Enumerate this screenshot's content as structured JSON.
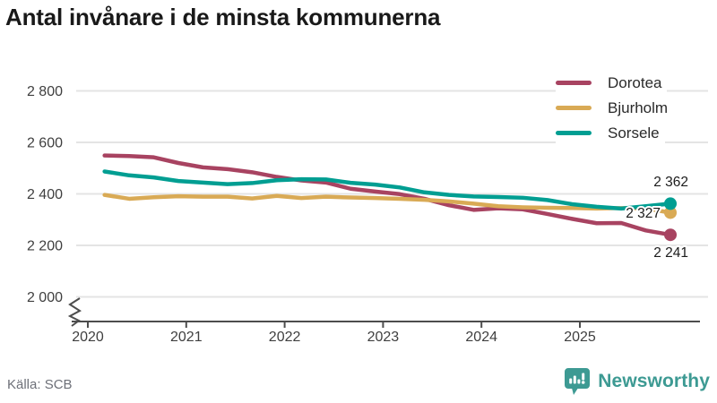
{
  "header": {
    "title": "Antal invånare i de minsta kommunerna"
  },
  "footer": {
    "source": "Källa: SCB",
    "brand": "Newsworthy"
  },
  "chart_data": {
    "type": "line",
    "title": "Antal invånare i de minsta kommunerna",
    "xlabel": "",
    "ylabel": "",
    "grid": "horizontal",
    "legend_position": "top-right",
    "axis_break_at_bottom": true,
    "ylim": [
      1960,
      2860
    ],
    "xlim": [
      2019.88,
      2026.3
    ],
    "x": [
      2020.17,
      2020.42,
      2020.67,
      2020.92,
      2021.17,
      2021.42,
      2021.67,
      2021.92,
      2022.17,
      2022.42,
      2022.67,
      2022.92,
      2023.17,
      2023.42,
      2023.67,
      2023.92,
      2024.17,
      2024.42,
      2024.67,
      2024.92,
      2025.17,
      2025.42,
      2025.67,
      2025.92
    ],
    "series": [
      {
        "name": "Dorotea",
        "color": "#a84361",
        "end_label": "2 241",
        "values": [
          2549,
          2547,
          2542,
          2520,
          2503,
          2496,
          2484,
          2466,
          2452,
          2444,
          2420,
          2409,
          2399,
          2381,
          2356,
          2338,
          2344,
          2340,
          2322,
          2303,
          2286,
          2287,
          2258,
          2241
        ]
      },
      {
        "name": "Bjurholm",
        "color": "#d9aa55",
        "end_label": "2 327",
        "values": [
          2396,
          2381,
          2387,
          2391,
          2389,
          2389,
          2382,
          2392,
          2384,
          2389,
          2386,
          2384,
          2381,
          2377,
          2371,
          2362,
          2352,
          2348,
          2346,
          2345,
          2343,
          2345,
          2344,
          2327
        ]
      },
      {
        "name": "Sorsele",
        "color": "#009e92",
        "end_label": "2 362",
        "values": [
          2487,
          2472,
          2464,
          2450,
          2444,
          2438,
          2442,
          2453,
          2457,
          2456,
          2443,
          2436,
          2425,
          2406,
          2396,
          2390,
          2388,
          2385,
          2376,
          2360,
          2350,
          2343,
          2352,
          2362
        ]
      }
    ],
    "yticks": [
      {
        "label": "2 800",
        "value": 2800
      },
      {
        "label": "2 600",
        "value": 2600
      },
      {
        "label": "2 400",
        "value": 2400
      },
      {
        "label": "2 200",
        "value": 2200
      },
      {
        "label": "2 000",
        "value": 2000
      }
    ],
    "xticks": [
      {
        "label": "2020",
        "value": 2020
      },
      {
        "label": "2021",
        "value": 2021
      },
      {
        "label": "2022",
        "value": 2022
      },
      {
        "label": "2023",
        "value": 2023
      },
      {
        "label": "2024",
        "value": 2024
      },
      {
        "label": "2025",
        "value": 2025
      }
    ],
    "colors": {
      "accent_brand": "#3d9a93",
      "grid": "#e4e4e4",
      "axis": "#4d4d4d",
      "text": "#191919"
    }
  }
}
